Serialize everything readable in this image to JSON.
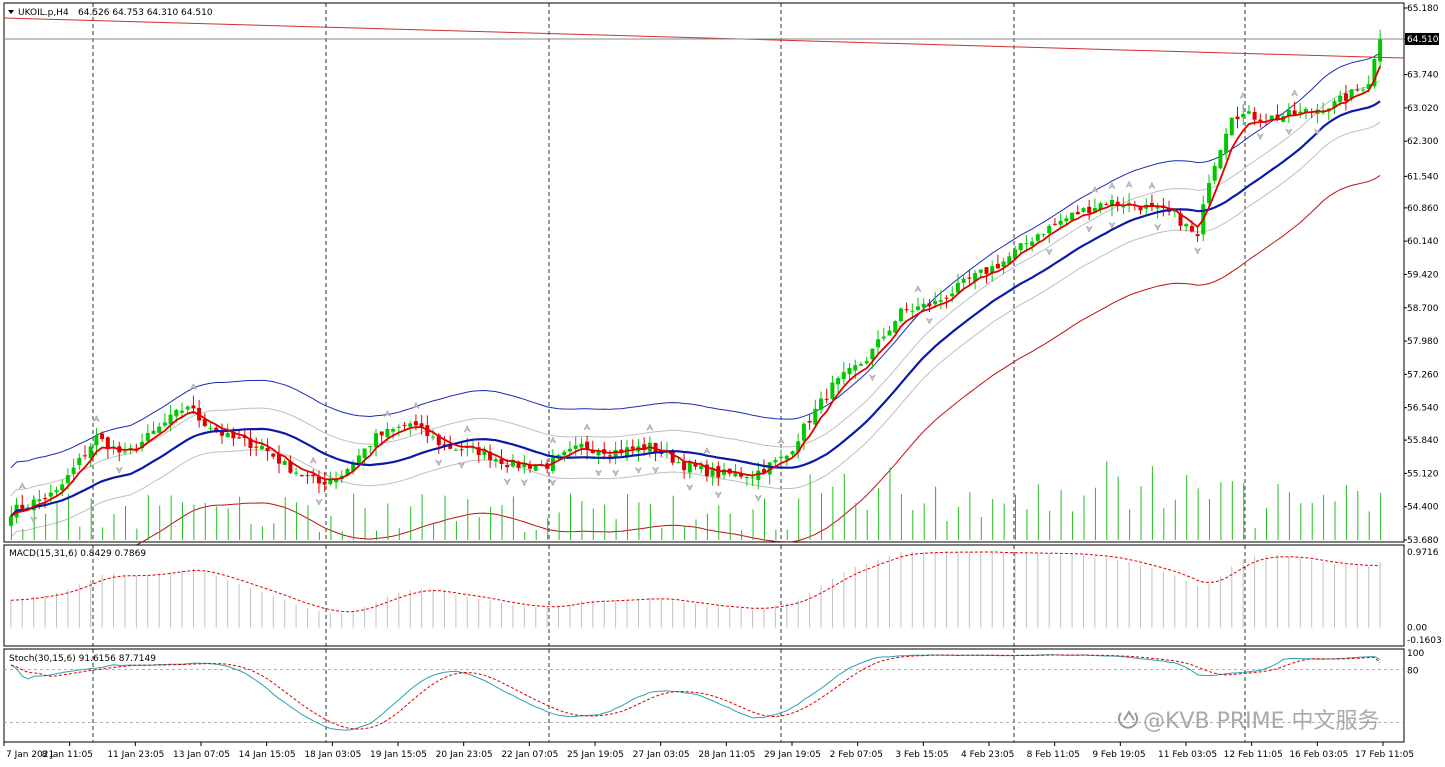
{
  "header": {
    "symbol": "UKOIL.p,H4",
    "ohlc": "64.526 64.753 64.310 64.510"
  },
  "price_badge": "64.510",
  "watermark": "@KVB PRIME 中文服务",
  "colors": {
    "bull": "#00c800",
    "bear": "#e00000",
    "ma_fast": "#e00000",
    "ma_mid": "#0a1aa8",
    "envelope": "#bfbfbf",
    "outer_blue": "#1a2ab8",
    "outer_red": "#c01010",
    "trendline": "#d03030",
    "volume": "#22bb22",
    "grid": "#000000"
  },
  "chart_data": [
    {
      "type": "candlestick",
      "symbol": "UKOIL.p",
      "timeframe": "H4",
      "ylim": [
        53.68,
        65.18
      ],
      "y_ticks": [
        "65.180",
        "64.510",
        "63.740",
        "63.020",
        "62.300",
        "61.540",
        "60.860",
        "60.140",
        "59.420",
        "58.700",
        "57.980",
        "57.260",
        "56.540",
        "55.840",
        "55.120",
        "54.400",
        "53.680"
      ],
      "x_ticks": [
        "7 Jan 2021",
        "8 Jan 11:05",
        "11 Jan 23:05",
        "13 Jan 07:05",
        "14 Jan 15:05",
        "18 Jan 03:05",
        "19 Jan 15:05",
        "20 Jan 23:05",
        "22 Jan 07:05",
        "25 Jan 19:05",
        "27 Jan 03:05",
        "28 Jan 11:05",
        "29 Jan 19:05",
        "2 Feb 07:05",
        "3 Feb 15:05",
        "4 Feb 23:05",
        "8 Feb 11:05",
        "9 Feb 19:05",
        "11 Feb 03:05",
        "12 Feb 11:05",
        "16 Feb 03:05",
        "17 Feb 11:05"
      ],
      "last_close": 64.51,
      "close_anchors": [
        [
          0,
          54.3
        ],
        [
          8,
          54.7
        ],
        [
          15,
          55.9
        ],
        [
          20,
          55.5
        ],
        [
          26,
          56.1
        ],
        [
          31,
          56.6
        ],
        [
          33,
          56.3
        ],
        [
          38,
          55.9
        ],
        [
          44,
          55.7
        ],
        [
          48,
          55.3
        ],
        [
          54,
          54.9
        ],
        [
          58,
          55.1
        ],
        [
          64,
          55.9
        ],
        [
          70,
          56.2
        ],
        [
          76,
          55.7
        ],
        [
          82,
          55.6
        ],
        [
          88,
          55.3
        ],
        [
          94,
          55.3
        ],
        [
          100,
          55.7
        ],
        [
          106,
          55.6
        ],
        [
          112,
          55.7
        ],
        [
          118,
          55.3
        ],
        [
          124,
          55.1
        ],
        [
          130,
          55.1
        ],
        [
          136,
          55.5
        ],
        [
          140,
          56.3
        ],
        [
          144,
          57.0
        ],
        [
          150,
          57.6
        ],
        [
          156,
          58.6
        ],
        [
          162,
          58.8
        ],
        [
          168,
          59.3
        ],
        [
          174,
          59.7
        ],
        [
          180,
          60.3
        ],
        [
          186,
          60.7
        ],
        [
          192,
          61.0
        ],
        [
          198,
          60.9
        ],
        [
          204,
          60.7
        ],
        [
          208,
          60.2
        ],
        [
          210,
          61.5
        ],
        [
          214,
          62.9
        ],
        [
          220,
          62.8
        ],
        [
          226,
          62.9
        ],
        [
          232,
          63.1
        ],
        [
          236,
          63.4
        ],
        [
          238,
          63.6
        ],
        [
          240,
          64.51
        ]
      ],
      "series": [
        {
          "name": "MA fast",
          "role": "ma_fast"
        },
        {
          "name": "MA slow",
          "role": "ma_mid"
        }
      ],
      "volume": true
    },
    {
      "type": "bar",
      "indicator": "MACD",
      "label": "MACD(15,31,6) 0.8429 0.7869",
      "ylim": [
        -0.1603,
        0.9716
      ],
      "y_ticks": [
        "0.9716",
        "0.00",
        "-0.1603"
      ],
      "last_main": 0.8429,
      "last_signal": 0.7869
    },
    {
      "type": "line",
      "indicator": "Stochastic",
      "label": "Stoch(30,15,6) 91.6156 87.7149",
      "ylim": [
        0,
        100
      ],
      "y_ticks": [
        "100",
        "80"
      ],
      "levels": [
        80,
        20
      ],
      "last_main": 91.6156,
      "last_signal": 87.7149
    }
  ]
}
